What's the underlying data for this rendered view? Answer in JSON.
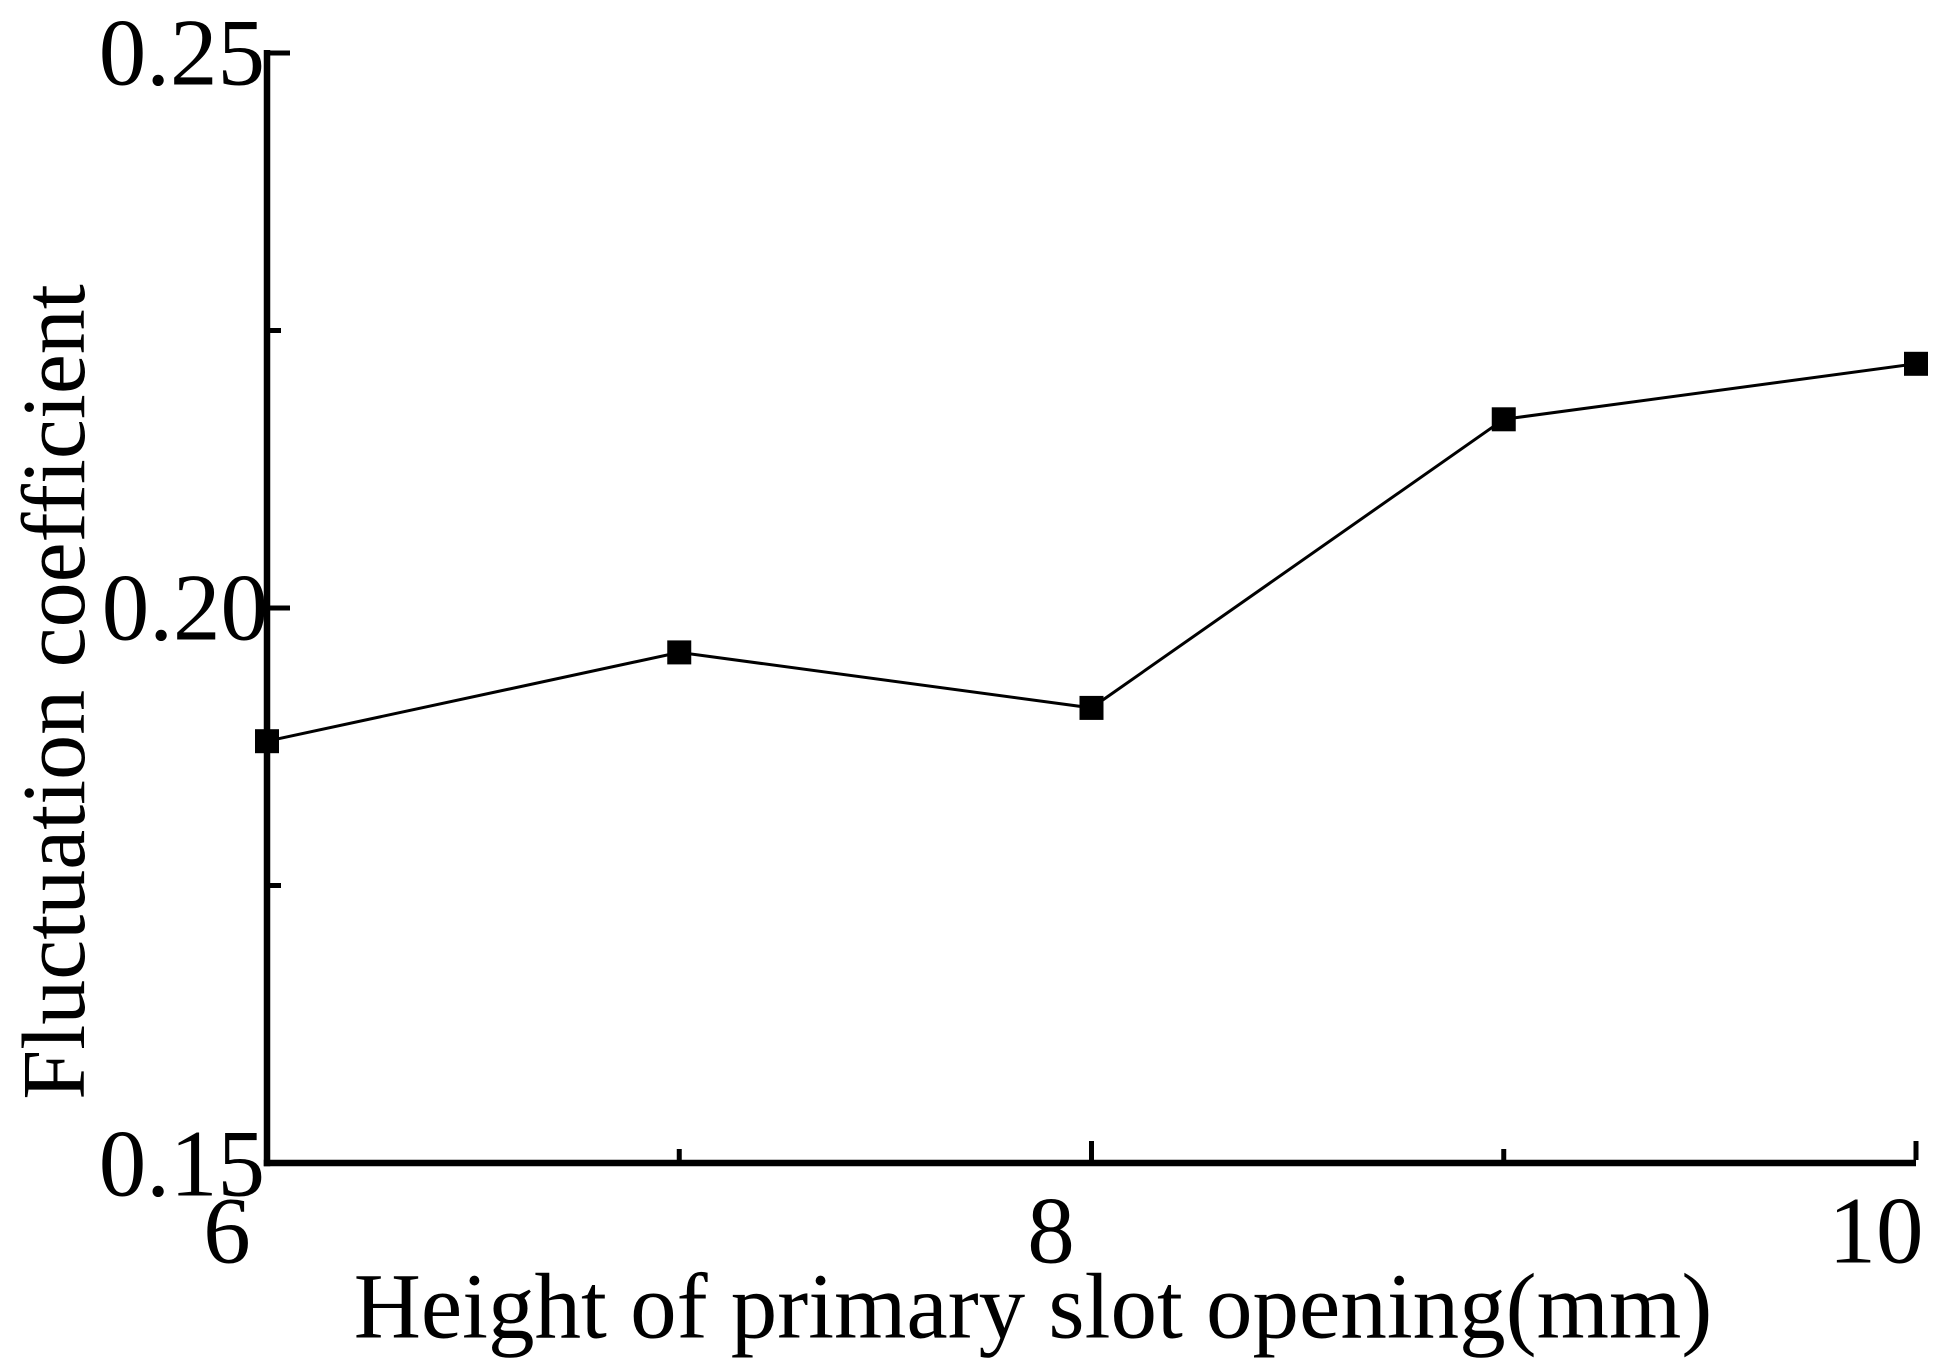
{
  "figure": {
    "background_color": "#ffffff",
    "ink_color": "#000000"
  },
  "chart_data": {
    "type": "line",
    "title": "",
    "xlabel": "Height of primary slot opening(mm)",
    "ylabel": "Fluctuation coefficient",
    "x": [
      6,
      7,
      8,
      9,
      10
    ],
    "series": [
      {
        "name": "Fluctuation coefficient",
        "values": [
          0.188,
          0.196,
          0.191,
          0.217,
          0.222
        ]
      }
    ],
    "xlim": [
      6,
      10
    ],
    "ylim": [
      0.15,
      0.25
    ],
    "x_major_ticks": [
      6,
      8,
      10
    ],
    "x_minor_ticks": [
      7,
      9
    ],
    "x_tick_labels": [
      "6",
      "8",
      "10"
    ],
    "y_major_ticks": [
      0.15,
      0.2,
      0.25
    ],
    "y_minor_ticks": [
      0.175,
      0.225
    ],
    "y_tick_labels": [
      "0.15",
      "0.20",
      "0.25"
    ],
    "marker": "filled-square",
    "marker_color": "#000000",
    "line_color": "#000000",
    "grid": false,
    "legend_position": "none",
    "tick_direction": "in",
    "frame": "left-bottom-spines-only"
  }
}
